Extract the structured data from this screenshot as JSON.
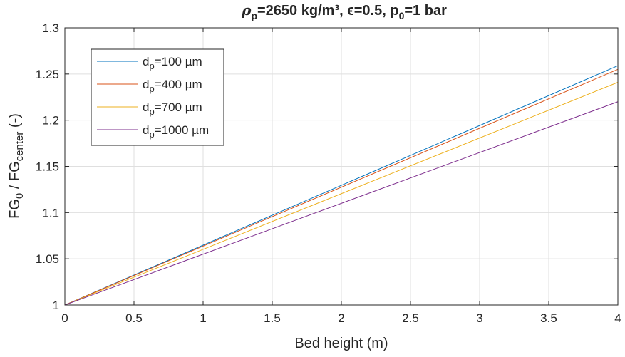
{
  "chart_data": {
    "type": "line",
    "title": "ρp=2650 kg/m³, ϵ=0.5, p0=1 bar",
    "title_parts": {
      "rho": "ρ",
      "rho_sub": "p",
      "mid": "=2650 kg/m³, ϵ=0.5, p",
      "p_sub": "0",
      "end": "=1 bar"
    },
    "xlabel": "Bed height (m)",
    "ylabel": "FG0 / FGcenter (-)",
    "ylabel_parts": {
      "a": "FG",
      "a_sub": "0",
      "b": " / FG",
      "b_sub": "center",
      "c": " (-)"
    },
    "xlim": [
      0,
      4
    ],
    "ylim": [
      1,
      1.3
    ],
    "x_ticks": [
      "0",
      "0.5",
      "1",
      "1.5",
      "2",
      "2.5",
      "3",
      "3.5",
      "4"
    ],
    "y_ticks": [
      "1",
      "1.05",
      "1.1",
      "1.15",
      "1.2",
      "1.25",
      "1.3"
    ],
    "grid": true,
    "legend_position": "top-left",
    "series": [
      {
        "name": "dp=100 µm",
        "label_parts": {
          "a": "d",
          "sub": "p",
          "b": "=100 µm"
        },
        "color": "#0072bd",
        "x": [
          0,
          4
        ],
        "y": [
          1,
          1.259
        ]
      },
      {
        "name": "dp=400 µm",
        "label_parts": {
          "a": "d",
          "sub": "p",
          "b": "=400 µm"
        },
        "color": "#d95319",
        "x": [
          0,
          4
        ],
        "y": [
          1,
          1.255
        ]
      },
      {
        "name": "dp=700 µm",
        "label_parts": {
          "a": "d",
          "sub": "p",
          "b": "=700 µm"
        },
        "color": "#edb120",
        "x": [
          0,
          4
        ],
        "y": [
          1,
          1.241
        ]
      },
      {
        "name": "dp=1000 µm",
        "label_parts": {
          "a": "d",
          "sub": "p",
          "b": "=1000 µm"
        },
        "color": "#7e2f8e",
        "x": [
          0,
          4
        ],
        "y": [
          1,
          1.22
        ]
      }
    ]
  }
}
